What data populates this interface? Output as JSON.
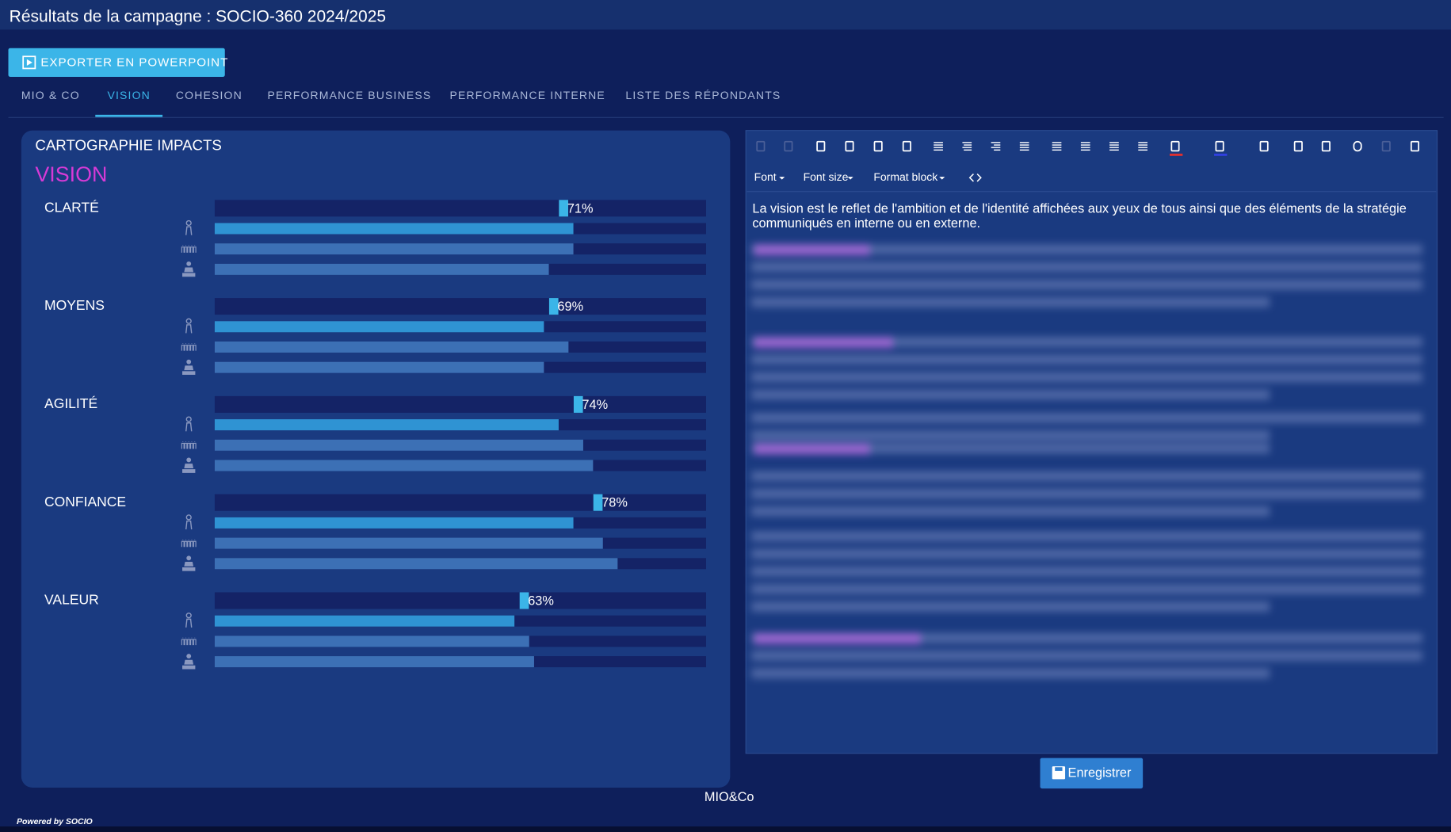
{
  "header": {
    "title": "Résultats de la campagne : SOCIO-360 2024/2025",
    "export_button": "EXPORTER EN POWERPOINT"
  },
  "tabs": [
    "MIO & CO",
    "VISION",
    "COHESION",
    "PERFORMANCE BUSINESS",
    "PERFORMANCE INTERNE",
    "LISTE DES RÉPONDANTS"
  ],
  "chart_data": {
    "type": "bar",
    "title": "CARTOGRAPHIE IMPACTS",
    "subtitle": "VISION",
    "categories": [
      "CLARTÉ",
      "MOYENS",
      "AGILITÉ",
      "CONFIANCE",
      "VALEUR"
    ],
    "values": [
      71,
      69,
      74,
      78,
      63
    ],
    "value_labels": [
      "71%",
      "69%",
      "74%",
      "78%",
      "63%"
    ],
    "color": "#3bb5e8",
    "series": [
      {
        "color": "#2f93d3",
        "values": [
          73,
          67,
          70,
          73,
          61
        ]
      },
      {
        "color": "#3c70b5",
        "values": [
          73,
          72,
          75,
          79,
          64
        ]
      },
      {
        "color": "#3c70b5",
        "values": [
          68,
          67,
          77,
          82,
          65
        ]
      }
    ],
    "xlim": [
      0,
      100
    ]
  },
  "editor": {
    "font": "Font",
    "font_size": "Font size",
    "format_block": "Format block",
    "text": [
      "La vision est le reflet de l'ambition et de l'identité affichées aux yeux de tous ainsi que des éléments de la stratégie",
      "communiqués en interne ou en externe."
    ],
    "save_button": "Enregistrer"
  },
  "footer": {
    "company": "MIO&Co",
    "powered_by": "Powered by SOCIO"
  }
}
